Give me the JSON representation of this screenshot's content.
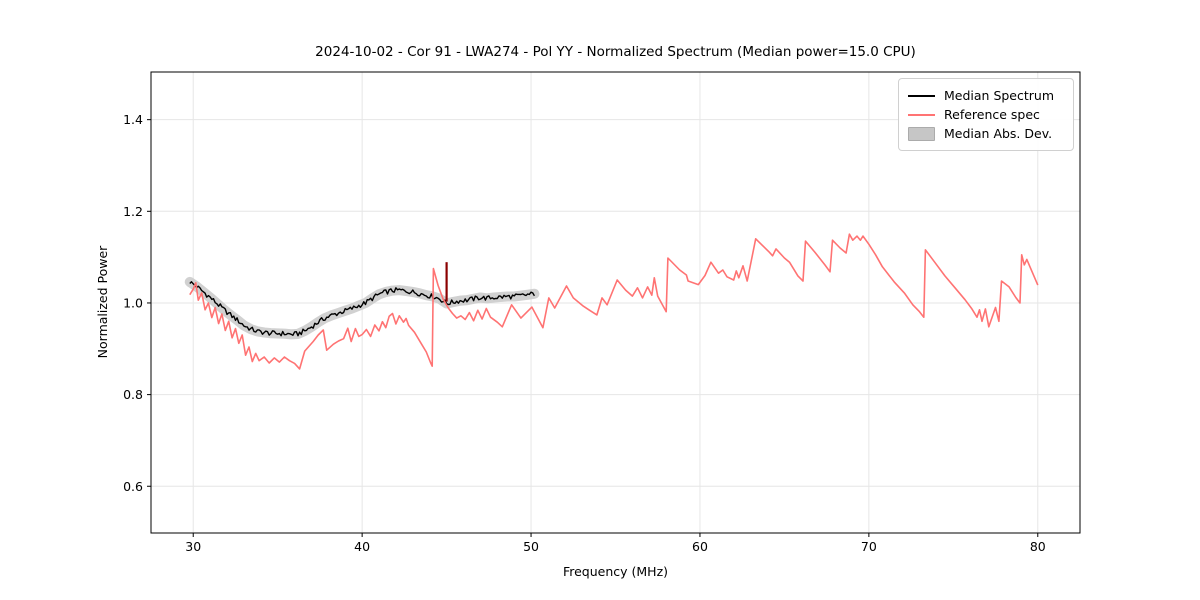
{
  "chart_data": {
    "type": "line",
    "title": "2024-10-02 - Cor 91 - LWA274 - Pol YY - Normalized Spectrum (Median power=15.0 CPU)",
    "xlabel": "Frequency (MHz)",
    "ylabel": "Normalized Power",
    "xlim": [
      27.5,
      82.5
    ],
    "ylim": [
      0.498,
      1.504
    ],
    "grid": true,
    "xticks": [
      {
        "value": 30,
        "label": "30"
      },
      {
        "value": 40,
        "label": "40"
      },
      {
        "value": 50,
        "label": "50"
      },
      {
        "value": 60,
        "label": "60"
      },
      {
        "value": 70,
        "label": "70"
      },
      {
        "value": 80,
        "label": "80"
      }
    ],
    "yticks": [
      {
        "value": 0.6,
        "label": "0.6"
      },
      {
        "value": 0.8,
        "label": "0.8"
      },
      {
        "value": 1.0,
        "label": "1.0"
      },
      {
        "value": 1.2,
        "label": "1.2"
      },
      {
        "value": 1.4,
        "label": "1.4"
      }
    ],
    "legend": {
      "position": "upper right",
      "entries": [
        {
          "label": "Median Spectrum",
          "type": "line",
          "color": "#000000"
        },
        {
          "label": "Reference spec",
          "type": "line",
          "color": "#ff7373"
        },
        {
          "label": "Median Abs. Dev.",
          "type": "patch",
          "color": "#c6c6c6",
          "edge_color": "#ababab"
        }
      ]
    },
    "series": [
      {
        "name": "Median Abs. Dev.",
        "render": "band",
        "color": "#c9c9c9",
        "opacity": 0.85,
        "band_halfwidth": 0.011,
        "follows": "Median Spectrum"
      },
      {
        "name": "Median Spectrum",
        "render": "noisy-line",
        "color": "#000000",
        "linewidth": 1.4,
        "noise_amplitude": 0.0055,
        "noise_step_mhz": 0.1,
        "points": [
          [
            29.8,
            1.046
          ],
          [
            30.2,
            1.036
          ],
          [
            30.6,
            1.024
          ],
          [
            31.0,
            1.012
          ],
          [
            31.4,
            0.999
          ],
          [
            31.8,
            0.986
          ],
          [
            32.2,
            0.974
          ],
          [
            32.6,
            0.963
          ],
          [
            33.0,
            0.951
          ],
          [
            33.4,
            0.943
          ],
          [
            33.8,
            0.938
          ],
          [
            34.2,
            0.9355
          ],
          [
            34.6,
            0.934
          ],
          [
            35.0,
            0.9335
          ],
          [
            35.4,
            0.933
          ],
          [
            35.8,
            0.9315
          ],
          [
            36.2,
            0.9325
          ],
          [
            36.6,
            0.939
          ],
          [
            37.0,
            0.948
          ],
          [
            37.4,
            0.958
          ],
          [
            37.8,
            0.967
          ],
          [
            38.2,
            0.973
          ],
          [
            38.6,
            0.978
          ],
          [
            39.0,
            0.983
          ],
          [
            39.4,
            0.988
          ],
          [
            39.8,
            0.994
          ],
          [
            40.2,
            1.0
          ],
          [
            40.6,
            1.01
          ],
          [
            41.0,
            1.019
          ],
          [
            41.4,
            1.024
          ],
          [
            41.8,
            1.027
          ],
          [
            42.2,
            1.028
          ],
          [
            42.6,
            1.026
          ],
          [
            43.0,
            1.024
          ],
          [
            43.4,
            1.021
          ],
          [
            43.8,
            1.017
          ],
          [
            44.2,
            1.014
          ],
          [
            44.6,
            1.009
          ],
          [
            45.0,
            0.999
          ],
          [
            45.4,
            1.002
          ],
          [
            45.8,
            1.005
          ],
          [
            46.2,
            1.006
          ],
          [
            46.6,
            1.009
          ],
          [
            47.0,
            1.012
          ],
          [
            47.4,
            1.01
          ],
          [
            47.8,
            1.012
          ],
          [
            48.2,
            1.013
          ],
          [
            48.6,
            1.014
          ],
          [
            49.0,
            1.014
          ],
          [
            49.4,
            1.016
          ],
          [
            49.8,
            1.018
          ],
          [
            50.2,
            1.02
          ]
        ]
      },
      {
        "name": "Reference spec",
        "render": "line",
        "color": "#ff7373",
        "linewidth": 1.6,
        "points": [
          [
            29.8,
            1.018
          ],
          [
            30.0,
            1.03
          ],
          [
            30.15,
            1.044
          ],
          [
            30.3,
            1.006
          ],
          [
            30.5,
            1.022
          ],
          [
            30.7,
            0.985
          ],
          [
            30.9,
            1.0
          ],
          [
            31.1,
            0.968
          ],
          [
            31.3,
            0.99
          ],
          [
            31.5,
            0.955
          ],
          [
            31.7,
            0.976
          ],
          [
            31.9,
            0.94
          ],
          [
            32.1,
            0.96
          ],
          [
            32.3,
            0.924
          ],
          [
            32.5,
            0.944
          ],
          [
            32.7,
            0.912
          ],
          [
            32.9,
            0.93
          ],
          [
            33.1,
            0.886
          ],
          [
            33.3,
            0.904
          ],
          [
            33.5,
            0.872
          ],
          [
            33.7,
            0.89
          ],
          [
            33.9,
            0.874
          ],
          [
            34.2,
            0.882
          ],
          [
            34.5,
            0.869
          ],
          [
            34.8,
            0.88
          ],
          [
            35.1,
            0.871
          ],
          [
            35.4,
            0.882
          ],
          [
            35.7,
            0.874
          ],
          [
            36.0,
            0.868
          ],
          [
            36.3,
            0.856
          ],
          [
            36.6,
            0.895
          ],
          [
            37.1,
            0.916
          ],
          [
            37.4,
            0.93
          ],
          [
            37.7,
            0.941
          ],
          [
            37.9,
            0.897
          ],
          [
            38.3,
            0.91
          ],
          [
            38.6,
            0.917
          ],
          [
            38.9,
            0.922
          ],
          [
            39.15,
            0.945
          ],
          [
            39.35,
            0.916
          ],
          [
            39.6,
            0.944
          ],
          [
            39.8,
            0.927
          ],
          [
            40.0,
            0.931
          ],
          [
            40.25,
            0.942
          ],
          [
            40.5,
            0.927
          ],
          [
            40.75,
            0.952
          ],
          [
            41.0,
            0.939
          ],
          [
            41.2,
            0.959
          ],
          [
            41.4,
            0.946
          ],
          [
            41.6,
            0.971
          ],
          [
            41.8,
            0.977
          ],
          [
            42.0,
            0.954
          ],
          [
            42.2,
            0.972
          ],
          [
            42.45,
            0.958
          ],
          [
            42.6,
            0.966
          ],
          [
            42.75,
            0.951
          ],
          [
            43.1,
            0.936
          ],
          [
            43.5,
            0.911
          ],
          [
            43.8,
            0.893
          ],
          [
            44.05,
            0.87
          ],
          [
            44.15,
            0.862
          ],
          [
            44.22,
            1.075
          ],
          [
            44.5,
            1.038
          ],
          [
            44.8,
            1.008
          ],
          [
            45.1,
            0.989
          ],
          [
            45.35,
            0.977
          ],
          [
            45.6,
            0.967
          ],
          [
            45.85,
            0.972
          ],
          [
            46.1,
            0.964
          ],
          [
            46.35,
            0.979
          ],
          [
            46.6,
            0.961
          ],
          [
            46.85,
            0.984
          ],
          [
            47.1,
            0.965
          ],
          [
            47.35,
            0.988
          ],
          [
            47.6,
            0.969
          ],
          [
            48.0,
            0.958
          ],
          [
            48.3,
            0.948
          ],
          [
            48.85,
            0.996
          ],
          [
            49.4,
            0.967
          ],
          [
            50.05,
            0.991
          ],
          [
            50.7,
            0.946
          ],
          [
            51.05,
            1.011
          ],
          [
            51.4,
            0.989
          ],
          [
            52.1,
            1.037
          ],
          [
            52.5,
            1.011
          ],
          [
            53.1,
            0.993
          ],
          [
            53.5,
            0.983
          ],
          [
            53.9,
            0.974
          ],
          [
            54.2,
            1.011
          ],
          [
            54.5,
            0.996
          ],
          [
            55.1,
            1.05
          ],
          [
            55.6,
            1.028
          ],
          [
            56.0,
            1.015
          ],
          [
            56.3,
            1.033
          ],
          [
            56.6,
            1.011
          ],
          [
            56.9,
            1.035
          ],
          [
            57.15,
            1.017
          ],
          [
            57.3,
            1.055
          ],
          [
            57.5,
            1.015
          ],
          [
            58.0,
            0.981
          ],
          [
            58.1,
            1.098
          ],
          [
            58.8,
            1.072
          ],
          [
            59.2,
            1.061
          ],
          [
            59.3,
            1.048
          ],
          [
            59.9,
            1.04
          ],
          [
            60.3,
            1.06
          ],
          [
            60.65,
            1.089
          ],
          [
            61.1,
            1.065
          ],
          [
            61.35,
            1.072
          ],
          [
            61.6,
            1.057
          ],
          [
            62.0,
            1.05
          ],
          [
            62.15,
            1.07
          ],
          [
            62.3,
            1.055
          ],
          [
            62.55,
            1.081
          ],
          [
            62.8,
            1.048
          ],
          [
            63.3,
            1.14
          ],
          [
            64.1,
            1.111
          ],
          [
            64.3,
            1.103
          ],
          [
            64.5,
            1.118
          ],
          [
            65.0,
            1.098
          ],
          [
            65.3,
            1.089
          ],
          [
            65.8,
            1.059
          ],
          [
            66.1,
            1.048
          ],
          [
            66.25,
            1.135
          ],
          [
            66.8,
            1.111
          ],
          [
            67.4,
            1.083
          ],
          [
            67.7,
            1.068
          ],
          [
            67.85,
            1.137
          ],
          [
            68.3,
            1.12
          ],
          [
            68.65,
            1.109
          ],
          [
            68.85,
            1.15
          ],
          [
            69.05,
            1.137
          ],
          [
            69.3,
            1.146
          ],
          [
            69.5,
            1.137
          ],
          [
            69.65,
            1.146
          ],
          [
            70.0,
            1.128
          ],
          [
            70.4,
            1.105
          ],
          [
            70.8,
            1.079
          ],
          [
            71.5,
            1.046
          ],
          [
            72.1,
            1.022
          ],
          [
            72.6,
            0.996
          ],
          [
            73.0,
            0.981
          ],
          [
            73.25,
            0.969
          ],
          [
            73.35,
            1.116
          ],
          [
            73.9,
            1.089
          ],
          [
            74.5,
            1.059
          ],
          [
            75.1,
            1.033
          ],
          [
            75.7,
            1.007
          ],
          [
            76.1,
            0.987
          ],
          [
            76.4,
            0.969
          ],
          [
            76.55,
            0.985
          ],
          [
            76.7,
            0.96
          ],
          [
            76.9,
            0.987
          ],
          [
            77.1,
            0.948
          ],
          [
            77.5,
            0.99
          ],
          [
            77.7,
            0.96
          ],
          [
            77.85,
            1.048
          ],
          [
            78.3,
            1.035
          ],
          [
            78.7,
            1.012
          ],
          [
            78.95,
            1.0
          ],
          [
            79.05,
            1.105
          ],
          [
            79.2,
            1.083
          ],
          [
            79.35,
            1.095
          ],
          [
            80.0,
            1.039
          ]
        ]
      }
    ],
    "annotations": [
      {
        "name": "flagged-rfi-spike",
        "type": "vertical-segment",
        "x": 45.0,
        "y0": 1.003,
        "y1": 1.089,
        "color": "#8b0000",
        "linewidth": 2.2
      }
    ],
    "colors": {
      "grid": "#e6e6e6",
      "spine": "#000000",
      "background": "#ffffff"
    }
  }
}
